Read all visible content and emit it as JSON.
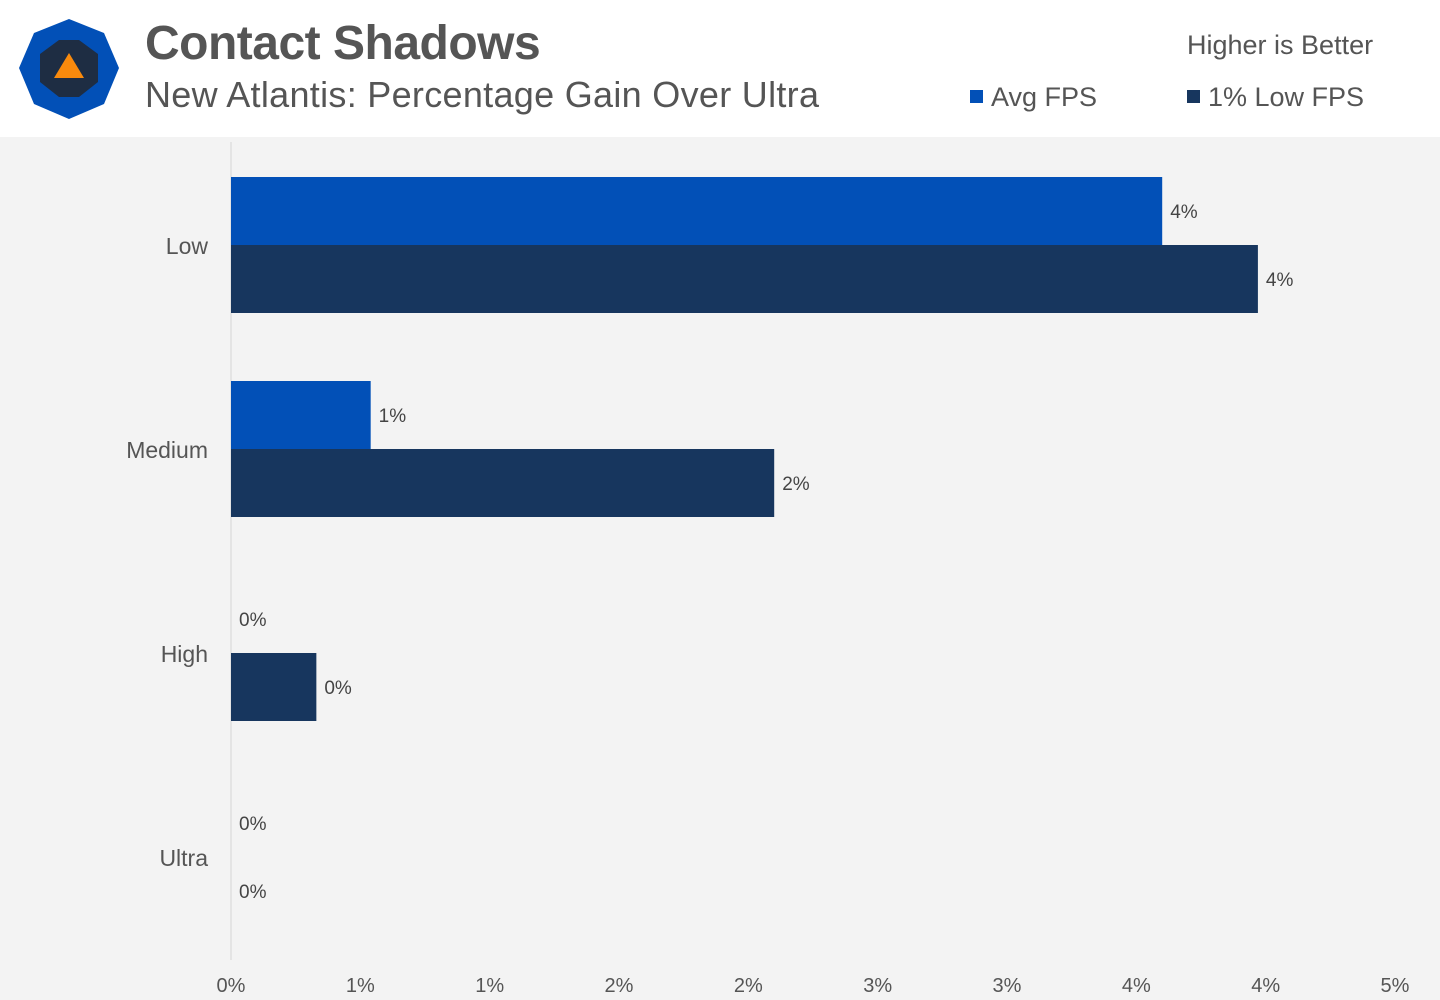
{
  "header": {
    "title": "Contact Shadows",
    "subtitle": "New Atlantis: Percentage Gain Over Ultra",
    "note": "Higher is Better"
  },
  "legend": {
    "avg_label": "Avg FPS",
    "low_label": "1% Low FPS"
  },
  "colors": {
    "avg": "#0250b7",
    "low": "#17365e",
    "logo_outer": "#0250b7",
    "logo_inner": "#1e2d43",
    "logo_triangle": "#f98a0d"
  },
  "logo_icon": "techspot-logo-icon",
  "chart_data": {
    "type": "bar",
    "orientation": "horizontal",
    "categories": [
      "Low",
      "Medium",
      "High",
      "Ultra"
    ],
    "series": [
      {
        "name": "Avg FPS",
        "values": [
          3.6,
          0.54,
          0.0,
          0.0
        ],
        "labels": [
          "4%",
          "1%",
          "0%",
          "0%"
        ]
      },
      {
        "name": "1% Low FPS",
        "values": [
          3.97,
          2.1,
          0.33,
          0.0
        ],
        "labels": [
          "4%",
          "2%",
          "0%",
          "0%"
        ]
      }
    ],
    "xlim": [
      0,
      4.5
    ],
    "x_ticks": [
      "0%",
      "1%",
      "1%",
      "2%",
      "2%",
      "3%",
      "3%",
      "4%",
      "4%",
      "5%"
    ],
    "xlabel": "",
    "ylabel": "",
    "grid": false,
    "legend_position": "top-right"
  }
}
